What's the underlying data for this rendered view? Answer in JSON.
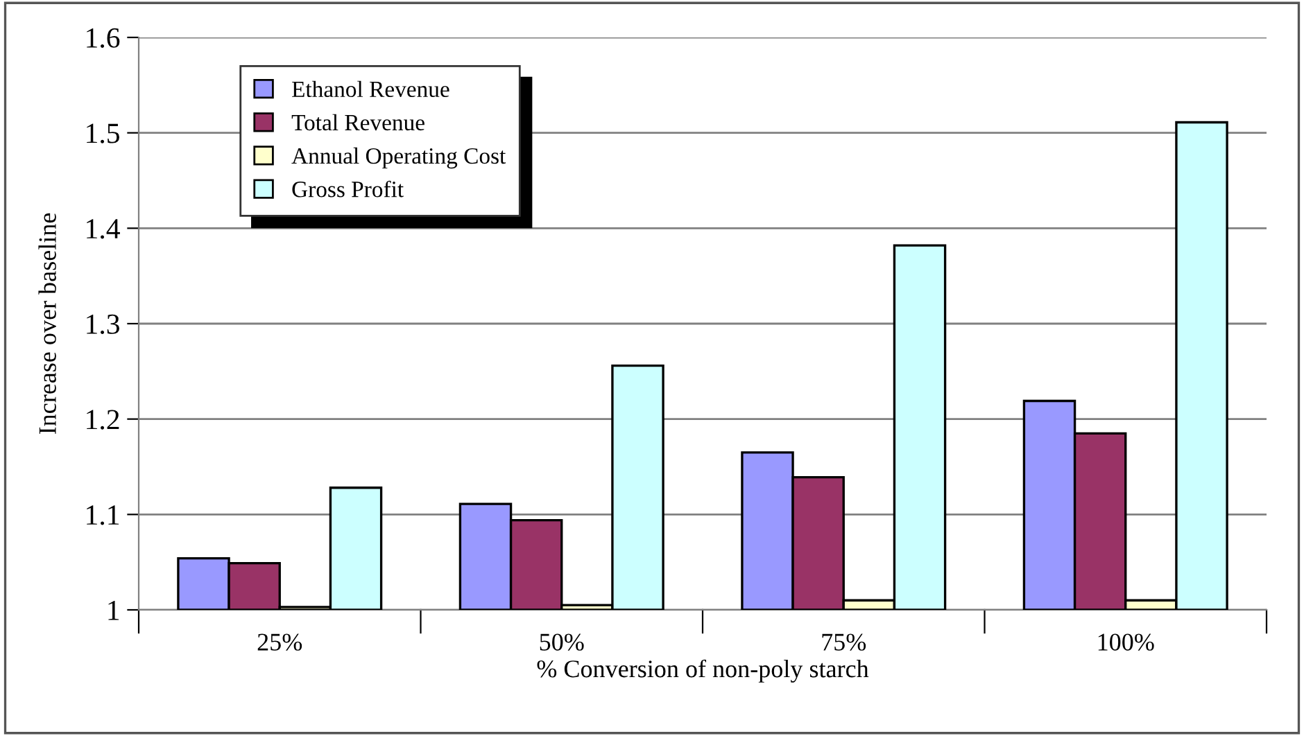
{
  "chart_data": {
    "type": "bar",
    "xlabel": "% Conversion of non-poly starch",
    "ylabel": "Increase over baseline",
    "categories": [
      "25%",
      "50%",
      "75%",
      "100%"
    ],
    "series": [
      {
        "name": "Ethanol Revenue",
        "color": "#9999ff",
        "values": [
          1.054,
          1.111,
          1.165,
          1.219
        ]
      },
      {
        "name": "Total Revenue",
        "color": "#993366",
        "values": [
          1.049,
          1.094,
          1.139,
          1.185
        ]
      },
      {
        "name": "Annual Operating Cost",
        "color": "#ffffcc",
        "values": [
          1.003,
          1.005,
          1.01,
          1.01
        ]
      },
      {
        "name": "Gross Profit",
        "color": "#ccffff",
        "values": [
          1.128,
          1.256,
          1.382,
          1.511
        ]
      }
    ],
    "ylim": [
      1,
      1.6
    ],
    "yticks": [
      1,
      1.1,
      1.2,
      1.3,
      1.4,
      1.5,
      1.6
    ],
    "grid": "y",
    "legend": "top left"
  }
}
